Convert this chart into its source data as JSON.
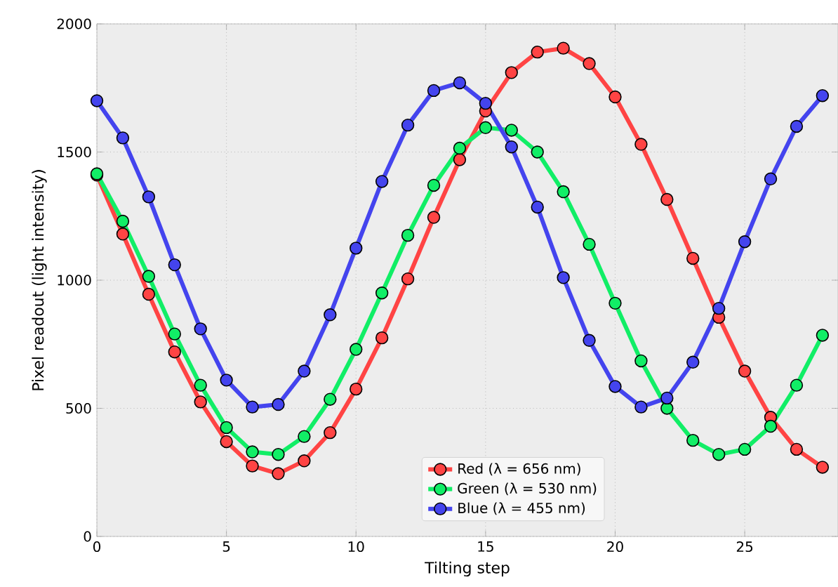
{
  "chart_data": {
    "type": "line",
    "xlabel": "Tilting step",
    "ylabel": "Pixel readout (light intensity)",
    "x": [
      0,
      1,
      2,
      3,
      4,
      5,
      6,
      7,
      8,
      9,
      10,
      11,
      12,
      13,
      14,
      15,
      16,
      17,
      18,
      19,
      20,
      21,
      22,
      23,
      24,
      25,
      26,
      27,
      28
    ],
    "series": [
      {
        "name": "Red (λ = 656 nm)",
        "color": "#ff4444",
        "values": [
          1410,
          1180,
          945,
          720,
          525,
          370,
          275,
          245,
          295,
          405,
          575,
          775,
          1005,
          1245,
          1470,
          1660,
          1810,
          1890,
          1905,
          1845,
          1715,
          1530,
          1315,
          1085,
          855,
          645,
          465,
          340,
          270
        ]
      },
      {
        "name": "Green (λ = 530 nm)",
        "color": "#11ee66",
        "values": [
          1415,
          1230,
          1015,
          790,
          590,
          425,
          330,
          320,
          390,
          535,
          730,
          950,
          1175,
          1370,
          1515,
          1595,
          1585,
          1500,
          1345,
          1140,
          910,
          685,
          500,
          375,
          320,
          340,
          430,
          590,
          785
        ]
      },
      {
        "name": "Blue (λ = 455 nm)",
        "color": "#4444ee",
        "values": [
          1700,
          1555,
          1325,
          1060,
          810,
          610,
          505,
          515,
          645,
          865,
          1125,
          1385,
          1605,
          1740,
          1770,
          1690,
          1520,
          1285,
          1010,
          765,
          585,
          505,
          540,
          680,
          890,
          1150,
          1395,
          1600,
          1720
        ]
      }
    ],
    "xlim": [
      0,
      28.6
    ],
    "ylim": [
      0,
      2000
    ],
    "xticks": [
      0,
      5,
      10,
      15,
      20,
      25
    ],
    "yticks": [
      0,
      500,
      1000,
      1500,
      2000
    ],
    "grid": true,
    "legend": "bottom right",
    "marker": "circle",
    "line_style": "solid"
  }
}
